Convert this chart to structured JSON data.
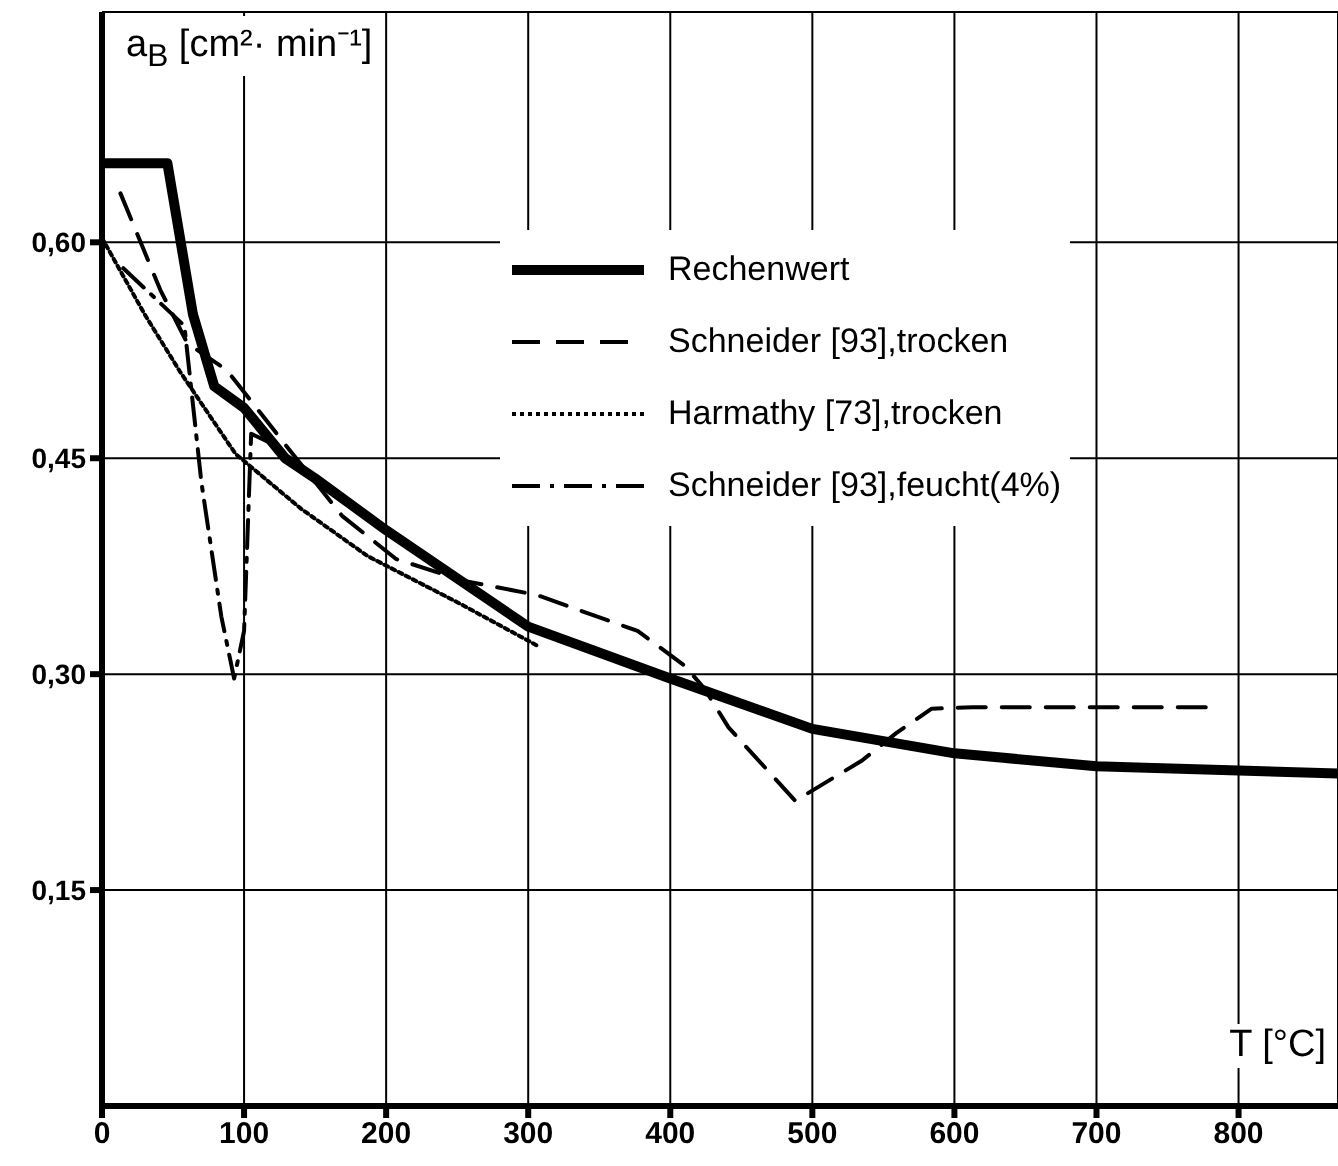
{
  "chart_data": {
    "type": "line",
    "xlabel": "T [°C]",
    "ylabel": "a$_{B}$ [cm²· min⁻¹]",
    "xlim": [
      0,
      870
    ],
    "xticks": [
      0,
      100,
      200,
      300,
      400,
      500,
      600,
      700,
      800
    ],
    "ylim": [
      0,
      0.76
    ],
    "yticks": [
      {
        "value": 0.15,
        "label": "0,15"
      },
      {
        "value": 0.3,
        "label": "0,30"
      },
      {
        "value": 0.45,
        "label": "0,45"
      },
      {
        "value": 0.6,
        "label": "0,60"
      }
    ],
    "grid": true,
    "legend": "top right",
    "marker": "none",
    "series": [
      {
        "name": "Rechenwert",
        "color": "#000000",
        "line_style": "solid",
        "x": [
          0,
          46,
          64,
          79,
          100,
          129,
          150,
          200,
          300,
          400,
          500,
          600,
          700,
          800,
          870
        ],
        "values": [
          0.655,
          0.655,
          0.55,
          0.5,
          0.485,
          0.45,
          0.436,
          0.4,
          0.333,
          0.297,
          0.262,
          0.245,
          0.236,
          0.233,
          0.231
        ]
      },
      {
        "name": "Schneider [93],trocken",
        "color": "#000000",
        "line_style": "dashed",
        "x": [
          13,
          41,
          60,
          88,
          131,
          169,
          207,
          254,
          306,
          377,
          410,
          424,
          441,
          488,
          535,
          559,
          584,
          613,
          779
        ],
        "values": [
          0.634,
          0.567,
          0.53,
          0.511,
          0.457,
          0.41,
          0.38,
          0.365,
          0.355,
          0.33,
          0.306,
          0.29,
          0.263,
          0.212,
          0.24,
          0.259,
          0.276,
          0.277,
          0.277
        ]
      },
      {
        "name": "Harmathy [73],trocken",
        "color": "#000000",
        "line_style": "dotted",
        "x": [
          0,
          30,
          55,
          94,
          140,
          187,
          250,
          306
        ],
        "values": [
          0.603,
          0.55,
          0.51,
          0.453,
          0.415,
          0.382,
          0.35,
          0.32
        ]
      },
      {
        "name": "Schneider [93],feucht(4%)",
        "color": "#000000",
        "line_style": "dashdot",
        "x": [
          15,
          58,
          70,
          84,
          93,
          100,
          105,
          120
        ],
        "values": [
          0.582,
          0.542,
          0.433,
          0.34,
          0.297,
          0.33,
          0.467,
          0.46
        ]
      }
    ]
  }
}
